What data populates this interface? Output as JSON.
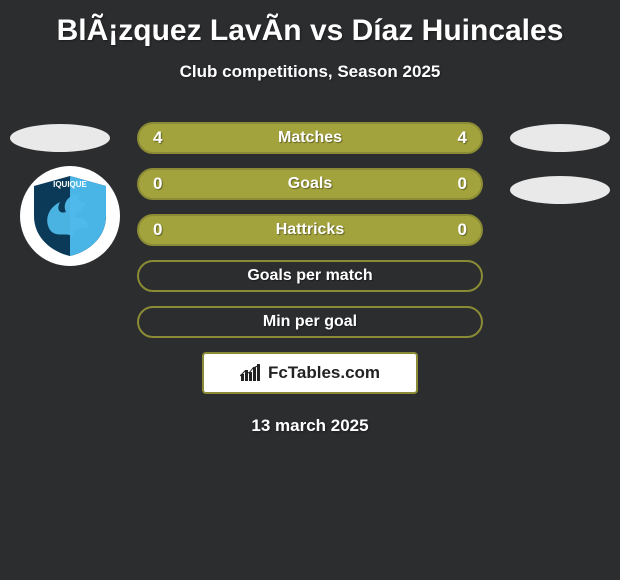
{
  "title": "BlÃ¡zquez LavÃ­n vs Díaz Huincales",
  "subtitle": "Club competitions, Season 2025",
  "date": "13 march 2025",
  "site_label": "FcTables.com",
  "colors": {
    "background": "#2c2d2f",
    "row_border": "#8b8b36",
    "row_fill": "#a3a33e",
    "row_fill_alt": "#a3a33e",
    "badge_bg": "#e9e9e9",
    "logo_bg": "#ffffff",
    "logo_ring": "#0a3a57",
    "dragon": "#49b4e6",
    "text": "#ffffff"
  },
  "badges": {
    "left_count": 1,
    "right_count": 2
  },
  "rows": [
    {
      "label": "Matches",
      "left": "4",
      "right": "4",
      "fill": true
    },
    {
      "label": "Goals",
      "left": "0",
      "right": "0",
      "fill": true
    },
    {
      "label": "Hattricks",
      "left": "0",
      "right": "0",
      "fill": true
    },
    {
      "label": "Goals per match",
      "left": "",
      "right": "",
      "fill": false
    },
    {
      "label": "Min per goal",
      "left": "",
      "right": "",
      "fill": false
    }
  ],
  "logo_label": "IQUIQUE"
}
